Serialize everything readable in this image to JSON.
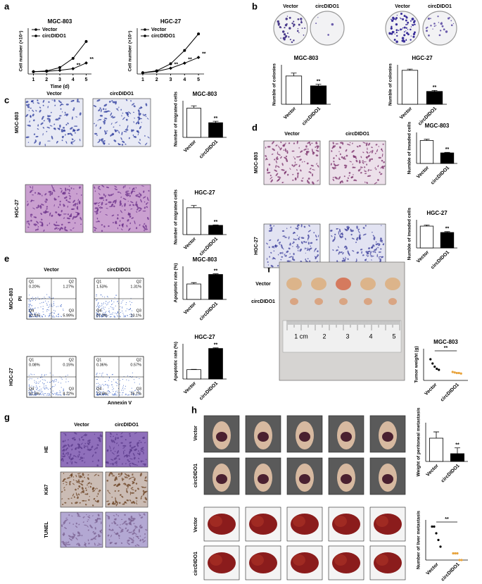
{
  "figure": {
    "letters": [
      "a",
      "b",
      "c",
      "d",
      "e",
      "f",
      "g",
      "h"
    ],
    "b": {
      "labels": [
        "Vector",
        "circDIDO1",
        "Vector",
        "circDIDO1"
      ]
    },
    "c": {
      "col_labels": [
        "Vector",
        "circDIDO1"
      ],
      "row_labels": [
        "MGC-803",
        "HGC-27"
      ]
    },
    "d": {
      "col_labels": [
        "Vector",
        "circDIDO1"
      ],
      "row_labels": [
        "MGC-803",
        "HGC-27"
      ]
    },
    "e": {
      "col_labels": [
        "Vector",
        "circDIDO1"
      ],
      "row_labels": [
        "MGC-803",
        "HGC-27"
      ],
      "y_label": "PI",
      "x_label": "Annexin V",
      "quadrant_names": [
        "Q1",
        "Q2",
        "Q3",
        "Q4"
      ],
      "plots": [
        [
          "0.20%",
          "1.27%",
          "5.99%",
          "92.5%"
        ],
        [
          "1.53%",
          "1.31%",
          "10.1%",
          "87.0%"
        ],
        [
          "0.08%",
          "0.15%",
          "8.22%",
          "91.5%"
        ],
        [
          "0.36%",
          "0.57%",
          "25.7%",
          "73.4%"
        ]
      ]
    },
    "f": {
      "row_labels": [
        "Vector",
        "circDIDO1"
      ],
      "ruler_labels": [
        "1 cm",
        "2",
        "3",
        "4",
        "5"
      ]
    },
    "g": {
      "col_labels": [
        "Vector",
        "circDIDO1"
      ],
      "row_labels": [
        "HE",
        "Ki67",
        "TUNEL"
      ]
    },
    "h": {
      "row_labels": [
        "Vector",
        "circDIDO1",
        "Vector",
        "circDIDO1"
      ]
    }
  },
  "chart_data": [
    {
      "type": "line",
      "title": "MGC-803",
      "x_label": "Time (d)",
      "y_label": "Cell number (×10⁴)",
      "x": [
        1,
        2,
        3,
        4,
        5
      ],
      "xlim": [
        0.6,
        5.4
      ],
      "xticks": [
        1,
        2,
        3,
        4,
        5
      ],
      "ylim": [
        0,
        20
      ],
      "series": [
        {
          "name": "Vector",
          "color": "#000000",
          "values": [
            1,
            1.3,
            2.8,
            6.8,
            14.2
          ]
        },
        {
          "name": "circDIDO1",
          "color": "#000000",
          "values": [
            1,
            1.1,
            1.6,
            2.3,
            4.8
          ]
        }
      ],
      "annotations": [
        "**",
        "**"
      ],
      "annotation_x": [
        4,
        5
      ]
    },
    {
      "type": "line",
      "title": "HGC-27",
      "y_label": "Cell number (×10⁴)",
      "x": [
        1,
        2,
        3,
        4,
        5
      ],
      "xlim": [
        0.6,
        5.4
      ],
      "xticks": [
        1,
        2,
        3,
        4,
        5
      ],
      "ylim": [
        0,
        36
      ],
      "series": [
        {
          "name": "Vector",
          "color": "#000000",
          "values": [
            1,
            2.5,
            8,
            18.5,
            31.5
          ]
        },
        {
          "name": "circDIDO1",
          "color": "#000000",
          "values": [
            1,
            2,
            4.5,
            8.5,
            13
          ]
        }
      ],
      "annotations": [
        "**",
        "**",
        "**"
      ],
      "annotation_x": [
        3,
        4,
        5
      ]
    },
    {
      "type": "bar",
      "title": "MGC-803",
      "y_label": "Numble of colonies",
      "categories": [
        "Vector",
        "circDIDO1"
      ],
      "values": [
        215,
        140
      ],
      "errors": [
        22,
        12
      ],
      "colors": [
        "#ffffff",
        "#000000"
      ],
      "ylim": [
        0,
        300
      ],
      "annotation": "**"
    },
    {
      "type": "bar",
      "title": "HGC-27",
      "y_label": "Numble of colonies",
      "categories": [
        "Vector",
        "circDIDO1"
      ],
      "values": [
        172,
        65
      ],
      "errors": [
        6,
        5
      ],
      "colors": [
        "#ffffff",
        "#000000"
      ],
      "ylim": [
        0,
        200
      ],
      "annotation": "**"
    },
    {
      "type": "bar",
      "title": "MGC-803",
      "y_label": "Number of migrated cells",
      "categories": [
        "Vector",
        "circDIDO1"
      ],
      "values": [
        200,
        100
      ],
      "errors": [
        15,
        10
      ],
      "colors": [
        "#ffffff",
        "#000000"
      ],
      "ylim": [
        0,
        250
      ],
      "annotation": "**"
    },
    {
      "type": "bar",
      "title": "HGC-27",
      "y_label": "Number of  migrated cells",
      "categories": [
        "Vector",
        "circDIDO1"
      ],
      "values": [
        305,
        105
      ],
      "errors": [
        25,
        5
      ],
      "colors": [
        "#ffffff",
        "#000000"
      ],
      "ylim": [
        0,
        400
      ],
      "annotation": "**"
    },
    {
      "type": "bar",
      "title": "MGC-803",
      "y_label": "Numble of invaded cells",
      "categories": [
        "Vector",
        "circDIDO1"
      ],
      "values": [
        185,
        85
      ],
      "errors": [
        10,
        4
      ],
      "colors": [
        "#ffffff",
        "#000000"
      ],
      "ylim": [
        0,
        250
      ],
      "annotation": "**"
    },
    {
      "type": "bar",
      "title": "HGC-27",
      "y_label": "Numble of invaded cells",
      "categories": [
        "Vector",
        "circDIDO1"
      ],
      "values": [
        155,
        110
      ],
      "errors": [
        8,
        6
      ],
      "colors": [
        "#ffffff",
        "#000000"
      ],
      "ylim": [
        0,
        200
      ],
      "annotation": "**"
    },
    {
      "type": "bar",
      "title": "MGC-803",
      "y_label": "Apoptotic rate (%)",
      "categories": [
        "Vector",
        "circDIDO1"
      ],
      "values": [
        7,
        11.3
      ],
      "errors": [
        0.6,
        0.3
      ],
      "colors": [
        "#ffffff",
        "#000000"
      ],
      "ylim": [
        0,
        15
      ],
      "annotation": "**"
    },
    {
      "type": "bar",
      "title": "HGC-27",
      "y_label": "Apoptotic rate (%)",
      "categories": [
        "Vector",
        "circDIDO1"
      ],
      "values": [
        8,
        26
      ],
      "errors": [
        0.2,
        0.5
      ],
      "colors": [
        "#ffffff",
        "#000000"
      ],
      "ylim": [
        0,
        30
      ],
      "annotation": "**"
    },
    {
      "type": "strip",
      "title": "MGC-803",
      "y_label": "Tumor weight (g)",
      "categories": [
        "Vector",
        "circDIDO1"
      ],
      "points": [
        [
          0.2,
          0.16,
          0.13,
          0.11,
          0.1
        ],
        [
          0.08,
          0.075,
          0.07,
          0.07,
          0.065
        ]
      ],
      "colors": [
        "#000000",
        "#e8a33c"
      ],
      "ylim": [
        0,
        0.3
      ],
      "annotation": "**"
    },
    {
      "type": "bar",
      "y_label": "Weight of peritoneal metastasis",
      "categories": [
        "Vector",
        "circDIDO1"
      ],
      "values": [
        4.8,
        1.6
      ],
      "errors": [
        1.3,
        1.2
      ],
      "colors": [
        "#ffffff",
        "#000000"
      ],
      "ylim": [
        0,
        8
      ],
      "annotation": "**"
    },
    {
      "type": "strip",
      "y_label": "Number of liver metastasis",
      "categories": [
        "Vector",
        "circDIDO1"
      ],
      "points": [
        [
          5,
          5,
          4,
          3,
          2
        ],
        [
          1,
          1,
          1,
          0,
          0
        ]
      ],
      "colors": [
        "#000000",
        "#e8a33c"
      ],
      "ylim": [
        0,
        6
      ],
      "annotation": "**"
    }
  ]
}
